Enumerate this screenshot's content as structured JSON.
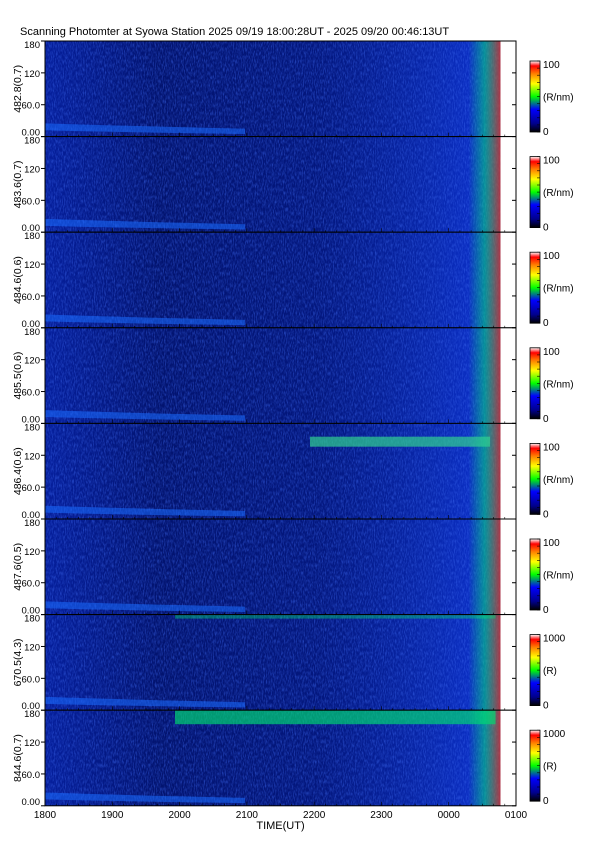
{
  "title": "Scanning Photomter at Syowa Station  2025 09/19 18:00:28UT - 2025 09/20 00:46:13UT",
  "colors": {
    "background": "#ffffff",
    "frame": "#000000"
  },
  "chart_data": {
    "type": "heatmap",
    "colormap": "rainbow",
    "xlabel": "TIME(UT)",
    "x_ticks": [
      "1800",
      "1900",
      "2000",
      "2100",
      "2200",
      "2300",
      "0000",
      "0100"
    ],
    "x_range": [
      "18:00",
      "01:00"
    ],
    "data_end": "00:46:13",
    "y_ticks": [
      "0.00",
      "60.0",
      "120",
      "180"
    ],
    "ylim": [
      0,
      180
    ],
    "panels": [
      {
        "ylabel": "482.8(0.7)",
        "colorbar": {
          "label": "(R/nm)",
          "min": "0",
          "max": "100"
        }
      },
      {
        "ylabel": "483.6(0.7)",
        "colorbar": {
          "label": "(R/nm)",
          "min": "0",
          "max": "100"
        }
      },
      {
        "ylabel": "484.6(0.6)",
        "colorbar": {
          "label": "(R/nm)",
          "min": "0",
          "max": "100"
        }
      },
      {
        "ylabel": "485.5(0.6)",
        "colorbar": {
          "label": "(R/nm)",
          "min": "0",
          "max": "100"
        }
      },
      {
        "ylabel": "486.4(0.6)",
        "colorbar": {
          "label": "(R/nm)",
          "min": "0",
          "max": "100"
        }
      },
      {
        "ylabel": "487.6(0.5)",
        "colorbar": {
          "label": "(R/nm)",
          "min": "0",
          "max": "100"
        }
      },
      {
        "ylabel": "670.5(4.3)",
        "colorbar": {
          "label": "(R)",
          "min": "0",
          "max": "1000"
        }
      },
      {
        "ylabel": "844.6(0.7)",
        "colorbar": {
          "label": "(R)",
          "min": "0",
          "max": "1000"
        }
      }
    ]
  }
}
